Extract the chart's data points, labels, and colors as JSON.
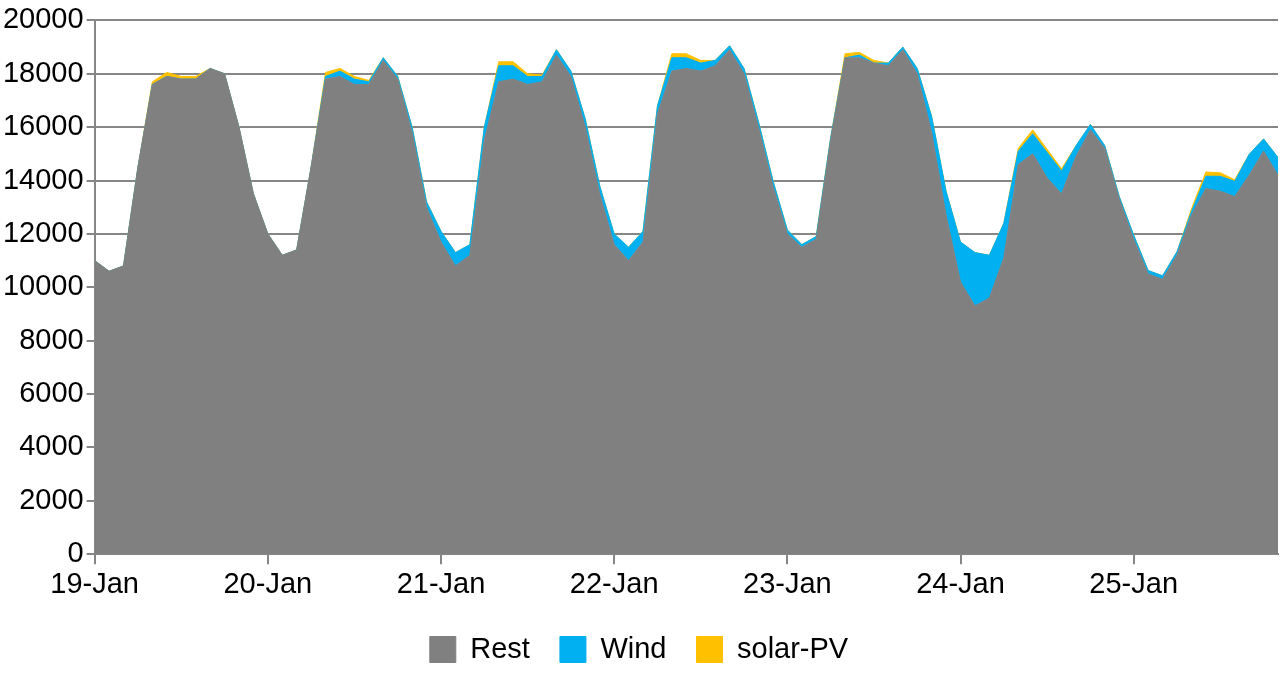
{
  "chart_data": {
    "type": "area",
    "stacked": true,
    "categories": [
      "19-Jan",
      null,
      null,
      null,
      null,
      null,
      null,
      null,
      null,
      null,
      null,
      null,
      "20-Jan",
      null,
      null,
      null,
      null,
      null,
      null,
      null,
      null,
      null,
      null,
      null,
      "21-Jan",
      null,
      null,
      null,
      null,
      null,
      null,
      null,
      null,
      null,
      null,
      null,
      "22-Jan",
      null,
      null,
      null,
      null,
      null,
      null,
      null,
      null,
      null,
      null,
      null,
      "23-Jan",
      null,
      null,
      null,
      null,
      null,
      null,
      null,
      null,
      null,
      null,
      null,
      "24-Jan",
      null,
      null,
      null,
      null,
      null,
      null,
      null,
      null,
      null,
      null,
      null,
      "25-Jan",
      null,
      null,
      null,
      null,
      null,
      null,
      null,
      null,
      null,
      null
    ],
    "series": [
      {
        "name": "Rest",
        "color": "#808080",
        "values": [
          11000,
          10600,
          10800,
          14500,
          17600,
          17900,
          17800,
          17800,
          18200,
          18000,
          16000,
          13500,
          12000,
          11200,
          11400,
          14500,
          17800,
          17900,
          17600,
          17600,
          18500,
          17800,
          15800,
          13000,
          11700,
          10800,
          11200,
          15500,
          17700,
          17800,
          17600,
          17700,
          18700,
          17900,
          16000,
          13500,
          11600,
          11000,
          11700,
          16500,
          18100,
          18200,
          18100,
          18300,
          18900,
          18000,
          16000,
          13800,
          12000,
          11500,
          11800,
          15500,
          18600,
          18600,
          18400,
          18300,
          18900,
          18000,
          15800,
          12700,
          10200,
          9300,
          9600,
          11100,
          14600,
          15000,
          14100,
          13500,
          14900,
          15900,
          15200,
          13300,
          11800,
          10500,
          10300,
          11200,
          12700,
          13700,
          13600,
          13400,
          14200,
          15100,
          14200
        ]
      },
      {
        "name": "Wind",
        "color": "#00b0f0",
        "values": [
          0,
          0,
          0,
          0,
          0,
          0,
          0,
          0,
          0,
          0,
          0,
          0,
          0,
          0,
          0,
          0,
          100,
          200,
          200,
          100,
          100,
          100,
          200,
          200,
          400,
          500,
          400,
          500,
          600,
          500,
          300,
          200,
          200,
          200,
          300,
          300,
          400,
          500,
          400,
          300,
          500,
          400,
          300,
          200,
          150,
          200,
          200,
          200,
          150,
          100,
          100,
          100,
          0,
          100,
          0,
          100,
          100,
          200,
          600,
          900,
          1500,
          2000,
          1600,
          1300,
          500,
          750,
          950,
          860,
          400,
          200,
          100,
          100,
          150,
          130,
          130,
          130,
          130,
          460,
          560,
          570,
          780,
          460,
          660
        ]
      },
      {
        "name": "solar-PV",
        "color": "#ffc000",
        "values": [
          0,
          0,
          0,
          0,
          100,
          150,
          100,
          100,
          0,
          0,
          0,
          0,
          0,
          0,
          0,
          0,
          150,
          100,
          100,
          50,
          0,
          0,
          0,
          0,
          0,
          0,
          0,
          0,
          150,
          150,
          100,
          50,
          0,
          0,
          0,
          0,
          0,
          0,
          0,
          0,
          150,
          150,
          100,
          0,
          0,
          0,
          0,
          0,
          0,
          0,
          0,
          0,
          150,
          100,
          100,
          0,
          0,
          0,
          0,
          0,
          0,
          0,
          0,
          0,
          100,
          150,
          120,
          80,
          0,
          0,
          0,
          0,
          0,
          0,
          0,
          0,
          100,
          160,
          130,
          60,
          0,
          0,
          0
        ]
      }
    ],
    "ylim": [
      0,
      20000
    ],
    "yticks": [
      0,
      2000,
      4000,
      6000,
      8000,
      10000,
      12000,
      14000,
      16000,
      18000,
      20000
    ],
    "grid": "y",
    "legend": "bottom"
  }
}
